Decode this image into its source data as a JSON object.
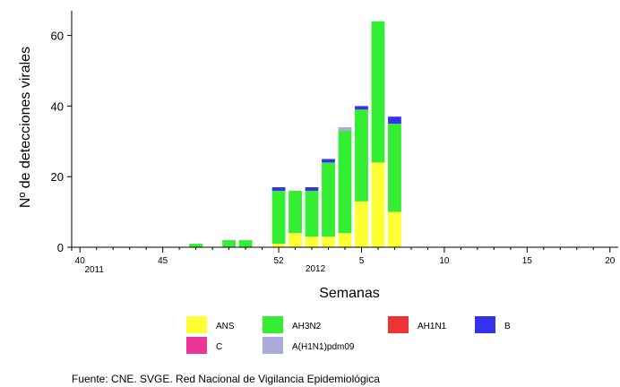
{
  "chart_data": {
    "type": "bar",
    "stacked": true,
    "xlabel": "Semanas",
    "ylabel": "Nº de detecciones virales",
    "ylim": [
      0,
      67
    ],
    "y_ticks": [
      0,
      20,
      40,
      60
    ],
    "x_ticks": [
      {
        "pos": 0,
        "label": "40",
        "sub": "2011"
      },
      {
        "pos": 5,
        "label": "45",
        "sub": ""
      },
      {
        "pos": 12,
        "label": "52",
        "sub": ""
      },
      {
        "pos": 17,
        "label": "5",
        "sub": ""
      },
      {
        "pos": 22,
        "label": "10",
        "sub": ""
      },
      {
        "pos": 27,
        "label": "15",
        "sub": ""
      },
      {
        "pos": 32,
        "label": "20",
        "sub": ""
      }
    ],
    "year_label": {
      "pos": 14,
      "text": "2012"
    },
    "x_range": [
      -0.5,
      32.5
    ],
    "categories": [
      "40",
      "41",
      "42",
      "43",
      "44",
      "45",
      "46",
      "47",
      "48",
      "49",
      "50",
      "51",
      "52",
      "1",
      "2",
      "3",
      "4",
      "5",
      "6",
      "7",
      "8",
      "9",
      "10",
      "11",
      "12",
      "13",
      "14",
      "15",
      "16",
      "17",
      "18",
      "19",
      "20"
    ],
    "series": [
      {
        "name": "ANS",
        "color": "#ffff33",
        "values": [
          0,
          0,
          0,
          0,
          0,
          0,
          0,
          0,
          0,
          0,
          0,
          0,
          1,
          4,
          3,
          3,
          4,
          13,
          24,
          10,
          0,
          0,
          0,
          0,
          0,
          0,
          0,
          0,
          0,
          0,
          0,
          0,
          0
        ]
      },
      {
        "name": "AH3N2",
        "color": "#33ee33",
        "values": [
          0,
          0,
          0,
          0,
          0,
          0,
          0,
          1,
          0,
          2,
          2,
          0,
          15,
          12,
          13,
          21,
          29,
          26,
          40,
          25,
          0,
          0,
          0,
          0,
          0,
          0,
          0,
          0,
          0,
          0,
          0,
          0,
          0
        ]
      },
      {
        "name": "AH1N1",
        "color": "#ee3333",
        "values": [
          0,
          0,
          0,
          0,
          0,
          0,
          0,
          0,
          0,
          0,
          0,
          0,
          0,
          0,
          0,
          0,
          0,
          0,
          0,
          0,
          0,
          0,
          0,
          0,
          0,
          0,
          0,
          0,
          0,
          0,
          0,
          0,
          0
        ]
      },
      {
        "name": "B",
        "color": "#3333ee",
        "values": [
          0,
          0,
          0,
          0,
          0,
          0,
          0,
          0,
          0,
          0,
          0,
          0,
          1,
          0,
          1,
          1,
          0,
          1,
          0,
          2,
          0,
          0,
          0,
          0,
          0,
          0,
          0,
          0,
          0,
          0,
          0,
          0,
          0
        ]
      },
      {
        "name": "C",
        "color": "#ee3399",
        "values": [
          0,
          0,
          0,
          0,
          0,
          0,
          0,
          0,
          0,
          0,
          0,
          0,
          0,
          0,
          0,
          0,
          0,
          0,
          0,
          0,
          0,
          0,
          0,
          0,
          0,
          0,
          0,
          0,
          0,
          0,
          0,
          0,
          0
        ]
      },
      {
        "name": "A(H1N1)pdm09",
        "color": "#aaaadd",
        "values": [
          0,
          0,
          0,
          0,
          0,
          0,
          0,
          0,
          0,
          0,
          0,
          0,
          0,
          0,
          0,
          0,
          1,
          0,
          0,
          0,
          0,
          0,
          0,
          0,
          0,
          0,
          0,
          0,
          0,
          0,
          0,
          0,
          0
        ]
      }
    ],
    "legend_placement": "bottom",
    "grid": false
  },
  "footer": {
    "source": "Fuente: CNE. SVGE. Red Nacional de Vigilancia Epidemiológica"
  }
}
